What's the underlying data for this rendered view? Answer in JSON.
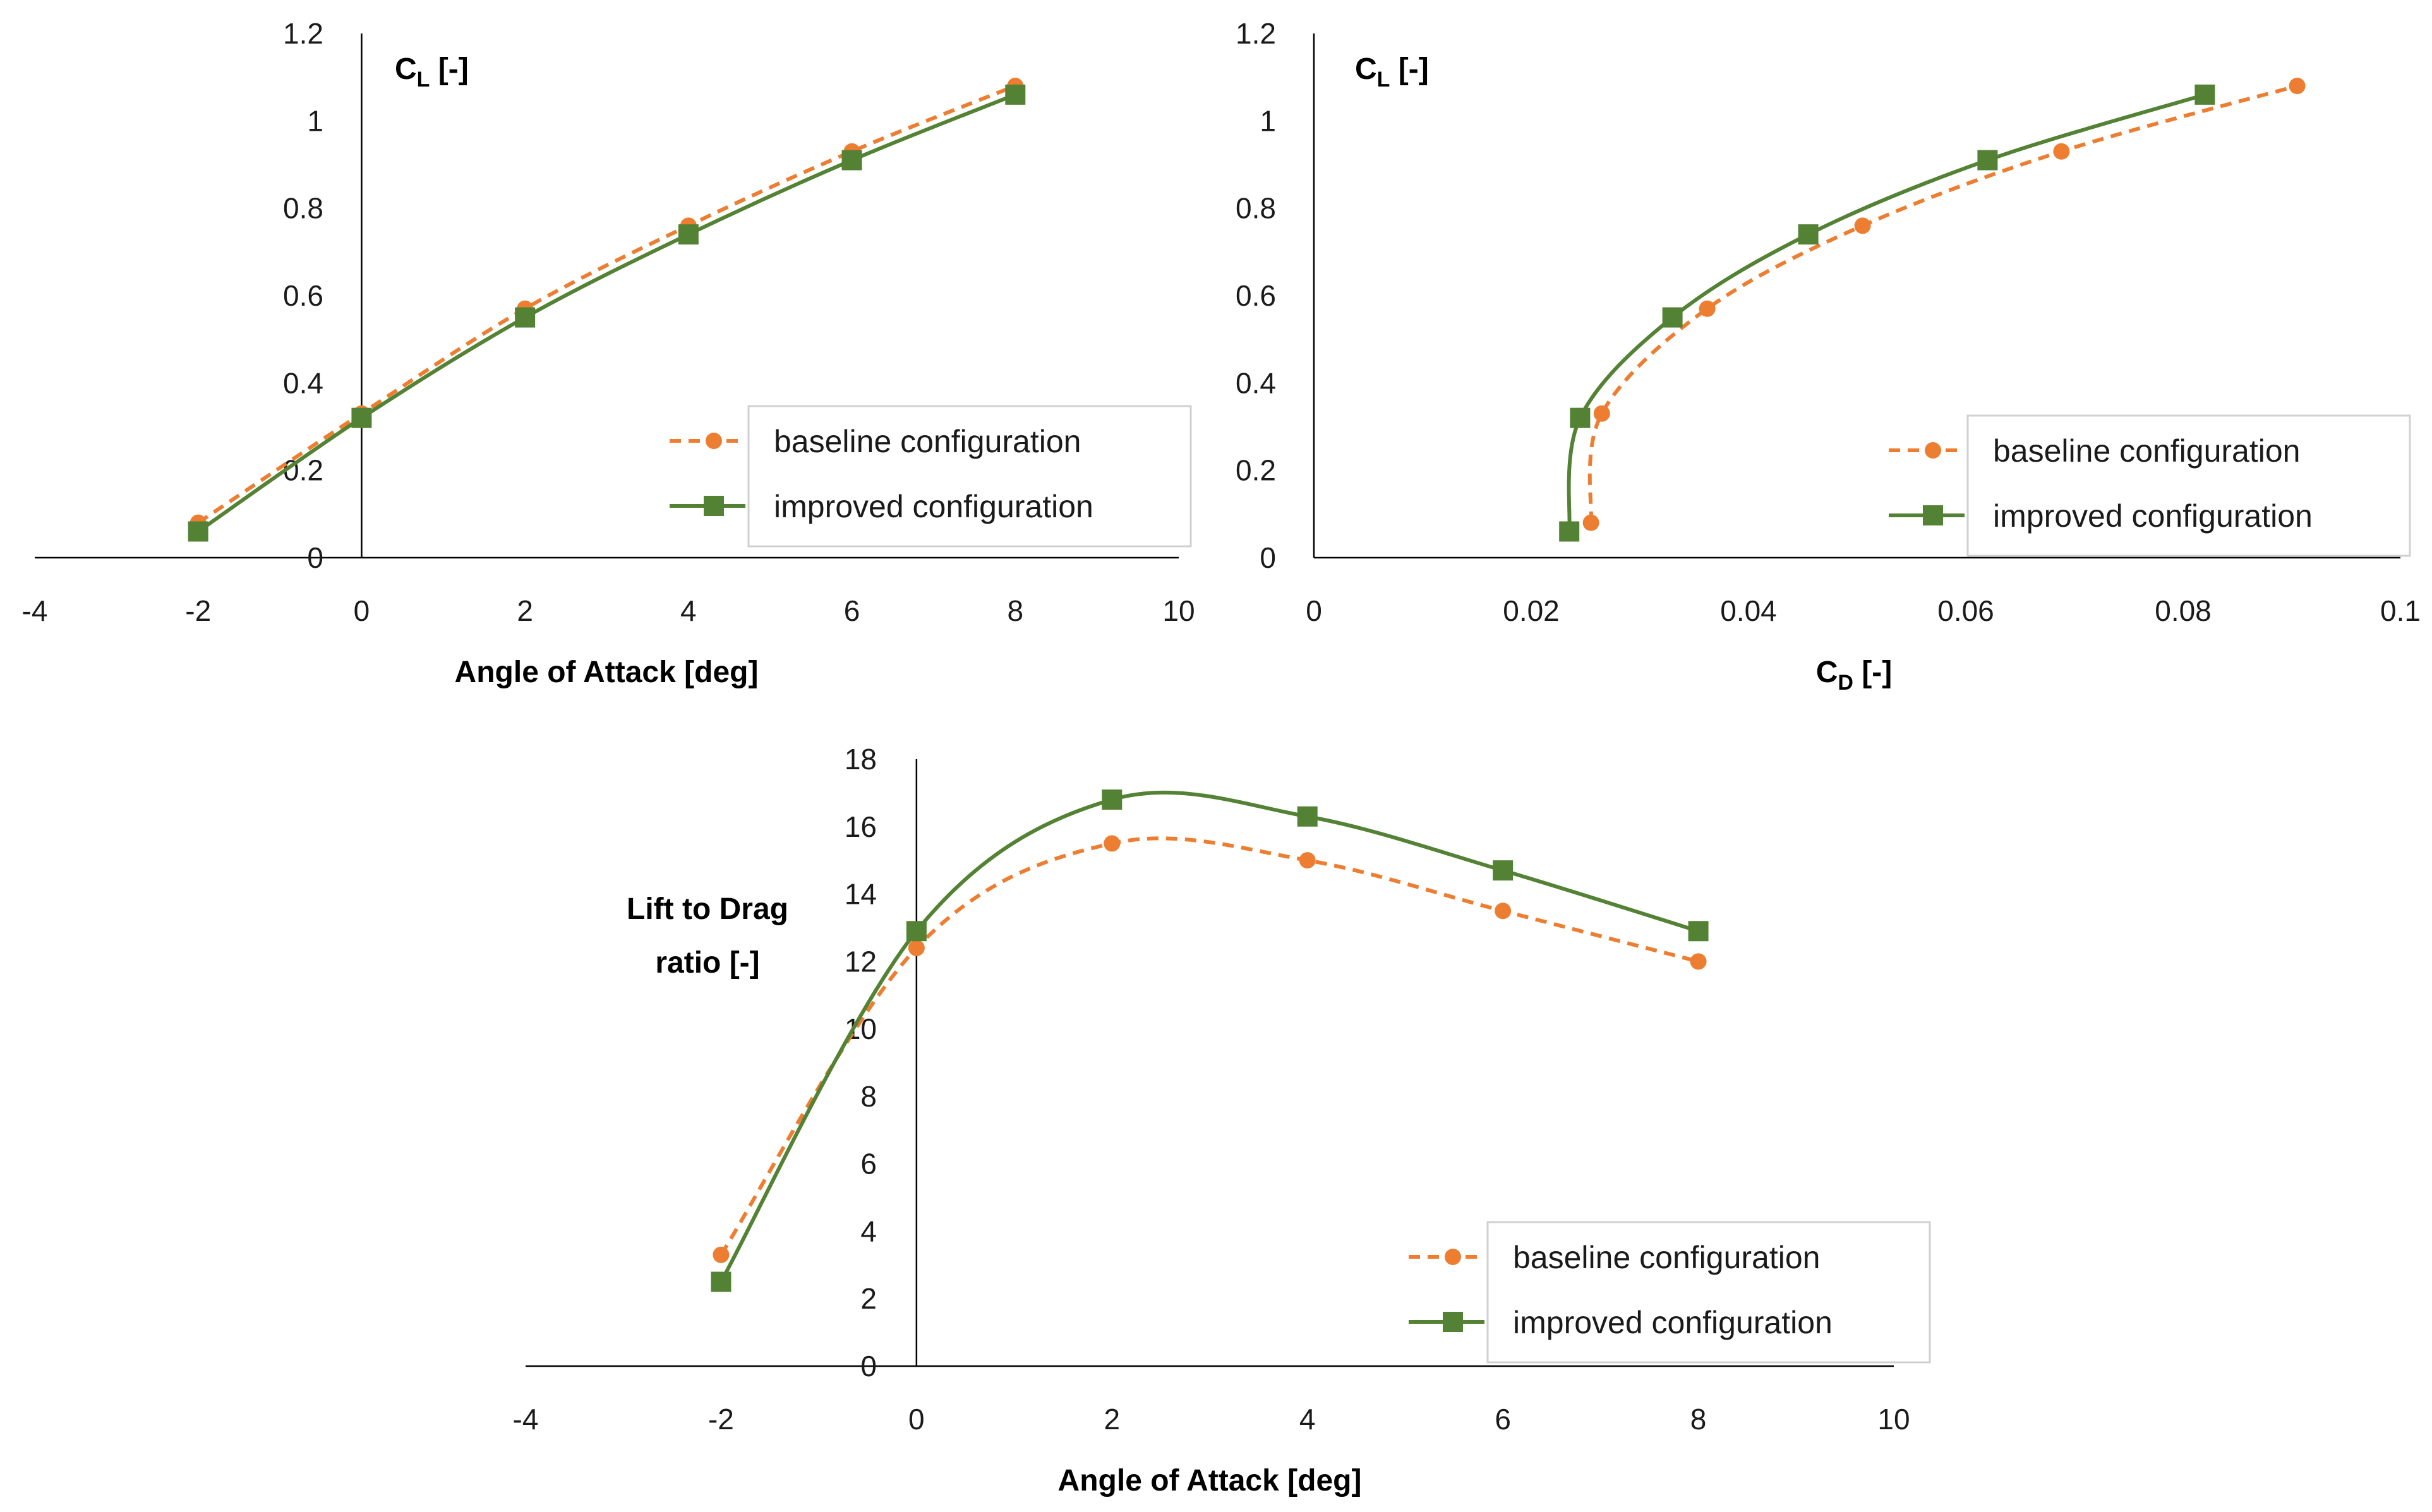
{
  "colors": {
    "baseline": "#ED7D31",
    "improved": "#548235"
  },
  "chart_data": [
    {
      "type": "line",
      "xlabel": "Angle of Attack [deg]",
      "ylabel": {
        "main": "C",
        "sub": "L",
        "rest": " [-]"
      },
      "xlim": [
        -4,
        10
      ],
      "ylim": [
        0,
        1.2
      ],
      "xticks": [
        "-4",
        "-2",
        "0",
        "2",
        "4",
        "6",
        "8",
        "10"
      ],
      "yticks": [
        "0",
        "0.2",
        "0.4",
        "0.6",
        "0.8",
        "1",
        "1.2"
      ],
      "grid": false,
      "legend_position": "bottom-right",
      "series": [
        {
          "name": "baseline configuration",
          "style": "dashed-circle",
          "points": [
            [
              -2,
              0.08
            ],
            [
              0,
              0.33
            ],
            [
              2,
              0.57
            ],
            [
              4,
              0.76
            ],
            [
              6,
              0.93
            ],
            [
              8,
              1.08
            ]
          ]
        },
        {
          "name": "improved configuration",
          "style": "solid-square",
          "points": [
            [
              -2,
              0.06
            ],
            [
              0,
              0.32
            ],
            [
              2,
              0.55
            ],
            [
              4,
              0.74
            ],
            [
              6,
              0.91
            ],
            [
              8,
              1.06
            ]
          ]
        }
      ]
    },
    {
      "type": "line",
      "xlabel": {
        "main": "C",
        "sub": "D",
        "rest": " [-]"
      },
      "ylabel": {
        "main": "C",
        "sub": "L",
        "rest": " [-]"
      },
      "xlim": [
        0,
        0.1
      ],
      "ylim": [
        0,
        1.2
      ],
      "xticks": [
        "0",
        "0.02",
        "0.04",
        "0.06",
        "0.08",
        "0.1"
      ],
      "yticks": [
        "0",
        "0.2",
        "0.4",
        "0.6",
        "0.8",
        "1",
        "1.2"
      ],
      "grid": false,
      "legend_position": "bottom-right",
      "series": [
        {
          "name": "baseline configuration",
          "style": "dashed-circle",
          "points": [
            [
              0.0255,
              0.08
            ],
            [
              0.0265,
              0.33
            ],
            [
              0.0362,
              0.57
            ],
            [
              0.0505,
              0.76
            ],
            [
              0.0688,
              0.93
            ],
            [
              0.0905,
              1.08
            ]
          ]
        },
        {
          "name": "improved configuration",
          "style": "solid-square",
          "points": [
            [
              0.0235,
              0.06
            ],
            [
              0.0245,
              0.32
            ],
            [
              0.033,
              0.55
            ],
            [
              0.0455,
              0.74
            ],
            [
              0.062,
              0.91
            ],
            [
              0.082,
              1.06
            ]
          ]
        }
      ]
    },
    {
      "type": "line",
      "xlabel": "Angle of Attack [deg]",
      "ylabel": {
        "line1": "Lift to Drag",
        "line2": "ratio [-]"
      },
      "xlim": [
        -4,
        10
      ],
      "ylim": [
        0,
        18
      ],
      "xticks": [
        "-4",
        "-2",
        "0",
        "2",
        "4",
        "6",
        "8",
        "10"
      ],
      "yticks": [
        "0",
        "2",
        "4",
        "6",
        "8",
        "10",
        "12",
        "14",
        "16",
        "18"
      ],
      "grid": false,
      "legend_position": "bottom-right",
      "series": [
        {
          "name": "baseline configuration",
          "style": "dashed-circle",
          "points": [
            [
              -2,
              3.3
            ],
            [
              0,
              12.4
            ],
            [
              2,
              15.5
            ],
            [
              4,
              15.0
            ],
            [
              6,
              13.5
            ],
            [
              8,
              12.0
            ]
          ]
        },
        {
          "name": "improved configuration",
          "style": "solid-square",
          "points": [
            [
              -2,
              2.5
            ],
            [
              0,
              12.9
            ],
            [
              2,
              16.8
            ],
            [
              4,
              16.3
            ],
            [
              6,
              14.7
            ],
            [
              8,
              12.9
            ]
          ]
        }
      ]
    }
  ]
}
